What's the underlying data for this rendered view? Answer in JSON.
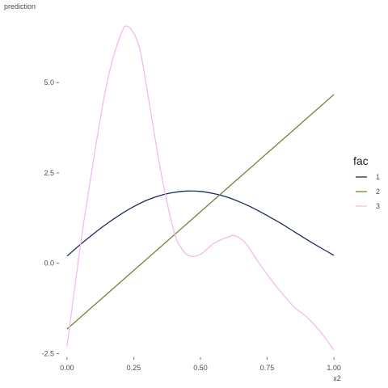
{
  "chart_data": {
    "type": "line",
    "xlabel": "x2",
    "ylabel": "prediction",
    "xlim": [
      -0.03,
      1.03
    ],
    "ylim": [
      -2.6,
      6.95
    ],
    "x_ticks": [
      0.0,
      0.25,
      0.5,
      0.75,
      1.0
    ],
    "x_tick_labels": [
      "0.00",
      "0.25",
      "0.50",
      "0.75",
      "1.00"
    ],
    "y_ticks": [
      -2.5,
      0.0,
      2.5,
      5.0
    ],
    "y_tick_labels": [
      "-2.5",
      "0.0",
      "2.5",
      "5.0"
    ],
    "grid": false,
    "legend": {
      "title": "fac",
      "position": "right"
    },
    "series": [
      {
        "name": "1",
        "color": "#1a2b5e",
        "x": [
          0.0,
          0.05,
          0.1,
          0.15,
          0.2,
          0.25,
          0.3,
          0.35,
          0.4,
          0.45,
          0.5,
          0.55,
          0.6,
          0.65,
          0.7,
          0.75,
          0.8,
          0.85,
          0.9,
          0.95,
          1.0
        ],
        "y": [
          0.2,
          0.52,
          0.82,
          1.1,
          1.35,
          1.57,
          1.75,
          1.88,
          1.96,
          2.0,
          1.99,
          1.93,
          1.83,
          1.69,
          1.52,
          1.32,
          1.11,
          0.88,
          0.65,
          0.43,
          0.22
        ]
      },
      {
        "name": "2",
        "color": "#7a7f3a",
        "x": [
          0.0,
          1.0
        ],
        "y": [
          -1.82,
          4.67
        ]
      },
      {
        "name": "3",
        "color": "#f7b8ef",
        "x": [
          0.0,
          0.03,
          0.06,
          0.1,
          0.15,
          0.2,
          0.23,
          0.27,
          0.3,
          0.35,
          0.4,
          0.43,
          0.46,
          0.5,
          0.55,
          0.6,
          0.63,
          0.67,
          0.72,
          0.78,
          0.85,
          0.9,
          0.95,
          1.0
        ],
        "y": [
          -2.3,
          -0.6,
          1.0,
          2.9,
          5.0,
          6.3,
          6.55,
          6.0,
          4.8,
          2.6,
          0.9,
          0.4,
          0.2,
          0.25,
          0.55,
          0.72,
          0.76,
          0.55,
          0.0,
          -0.6,
          -1.2,
          -1.5,
          -1.9,
          -2.4
        ]
      }
    ]
  }
}
